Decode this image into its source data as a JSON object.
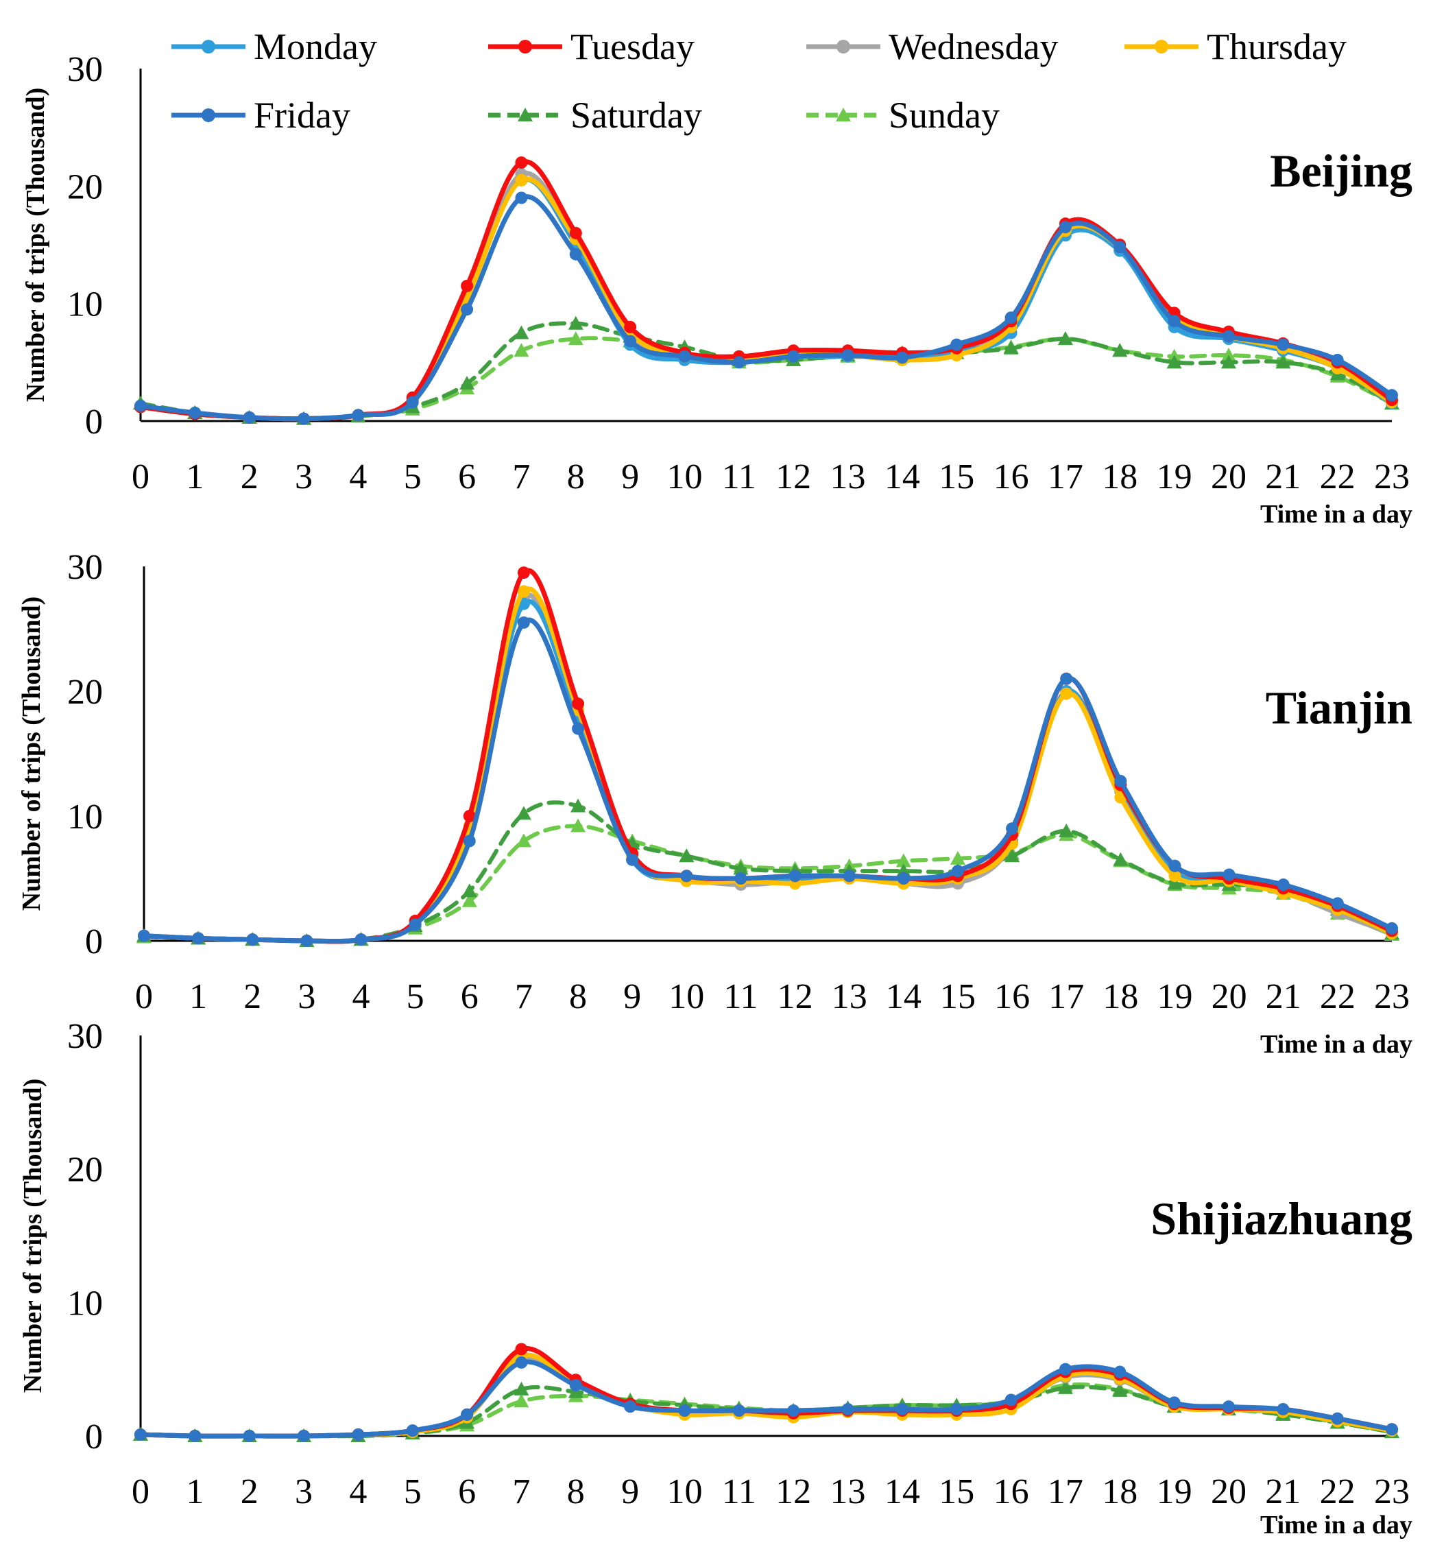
{
  "legend": {
    "placement": "top",
    "items": [
      {
        "label": "Monday",
        "color": "#2E9FDB",
        "dash": false,
        "marker": "circle"
      },
      {
        "label": "Tuesday",
        "color": "#F50F0F",
        "dash": false,
        "marker": "circle"
      },
      {
        "label": "Wednesday",
        "color": "#A6A6A6",
        "dash": false,
        "marker": "circle"
      },
      {
        "label": "Thursday",
        "color": "#FFBF00",
        "dash": false,
        "marker": "circle"
      },
      {
        "label": "Friday",
        "color": "#2E75C6",
        "dash": false,
        "marker": "circle"
      },
      {
        "label": "Saturday",
        "color": "#3F9F3F",
        "dash": true,
        "marker": "triangle"
      },
      {
        "label": "Sunday",
        "color": "#6CC94A",
        "dash": true,
        "marker": "triangle"
      }
    ]
  },
  "chart_data": [
    {
      "type": "line",
      "title": "Beijing",
      "xlabel": "Time in a day",
      "ylabel": "Number of trips (Thousand)",
      "ylim": [
        0,
        30
      ],
      "yticks": [
        0,
        10,
        20,
        30
      ],
      "x": [
        0,
        1,
        2,
        3,
        4,
        5,
        6,
        7,
        8,
        9,
        10,
        11,
        12,
        13,
        14,
        15,
        16,
        17,
        18,
        19,
        20,
        21,
        22,
        23
      ],
      "series": [
        {
          "name": "Monday",
          "values": [
            1.2,
            0.6,
            0.3,
            0.2,
            0.5,
            1.8,
            10.5,
            20.5,
            15.0,
            6.5,
            5.2,
            5.0,
            5.5,
            5.5,
            5.5,
            6.0,
            7.5,
            15.8,
            14.5,
            8.0,
            7.0,
            6.0,
            4.5,
            1.5
          ]
        },
        {
          "name": "Tuesday",
          "values": [
            1.2,
            0.6,
            0.3,
            0.2,
            0.5,
            2.0,
            11.5,
            22.0,
            16.0,
            8.0,
            5.8,
            5.5,
            6.0,
            6.0,
            5.8,
            6.2,
            8.5,
            16.8,
            15.0,
            9.2,
            7.6,
            6.6,
            5.0,
            1.8
          ]
        },
        {
          "name": "Wednesday",
          "values": [
            1.2,
            0.6,
            0.3,
            0.2,
            0.5,
            1.8,
            10.8,
            21.0,
            15.5,
            7.0,
            5.5,
            5.2,
            5.8,
            5.8,
            5.2,
            5.8,
            8.0,
            16.0,
            14.5,
            8.5,
            7.0,
            6.2,
            4.8,
            1.6
          ]
        },
        {
          "name": "Thursday",
          "values": [
            1.2,
            0.6,
            0.3,
            0.2,
            0.5,
            1.8,
            10.5,
            20.5,
            15.5,
            7.5,
            5.5,
            5.2,
            5.6,
            5.6,
            5.2,
            5.6,
            8.0,
            16.2,
            14.8,
            8.8,
            7.2,
            6.2,
            4.5,
            1.6
          ]
        },
        {
          "name": "Friday",
          "values": [
            1.3,
            0.7,
            0.3,
            0.2,
            0.5,
            1.6,
            9.5,
            19.0,
            14.2,
            6.8,
            5.5,
            5.0,
            5.5,
            5.6,
            5.4,
            6.5,
            8.8,
            16.5,
            14.8,
            8.5,
            7.2,
            6.5,
            5.2,
            2.2
          ]
        },
        {
          "name": "Saturday",
          "values": [
            1.5,
            0.7,
            0.3,
            0.2,
            0.4,
            1.2,
            3.2,
            7.5,
            8.3,
            7.2,
            6.3,
            5.2,
            5.2,
            5.6,
            5.8,
            5.8,
            6.2,
            7.0,
            6.0,
            5.0,
            5.0,
            5.0,
            4.0,
            1.5
          ]
        },
        {
          "name": "Sunday",
          "values": [
            1.5,
            0.7,
            0.3,
            0.2,
            0.4,
            1.0,
            2.8,
            6.0,
            7.0,
            6.8,
            5.8,
            5.0,
            5.2,
            5.5,
            5.5,
            5.8,
            6.3,
            7.0,
            6.0,
            5.5,
            5.6,
            5.2,
            3.8,
            1.5
          ]
        }
      ]
    },
    {
      "type": "line",
      "title": "Tianjin",
      "xlabel": "Time in a day",
      "ylabel": "Number of trips (Thousand)",
      "ylim": [
        0,
        30
      ],
      "yticks": [
        0,
        10,
        20,
        30
      ],
      "x": [
        0,
        1,
        2,
        3,
        4,
        5,
        6,
        7,
        8,
        9,
        10,
        11,
        12,
        13,
        14,
        15,
        16,
        17,
        18,
        19,
        20,
        21,
        22,
        23
      ],
      "series": [
        {
          "name": "Monday",
          "values": [
            0.4,
            0.2,
            0.1,
            0.0,
            0.1,
            1.5,
            9.0,
            27.0,
            18.0,
            6.5,
            5.0,
            4.8,
            5.0,
            5.0,
            4.8,
            5.0,
            8.0,
            20.0,
            12.0,
            5.5,
            5.0,
            4.0,
            2.5,
            0.6
          ]
        },
        {
          "name": "Tuesday",
          "values": [
            0.4,
            0.2,
            0.1,
            0.0,
            0.1,
            1.6,
            10.0,
            29.5,
            19.0,
            7.0,
            5.2,
            5.0,
            5.2,
            5.2,
            5.0,
            5.2,
            8.5,
            21.0,
            12.5,
            6.0,
            5.0,
            4.2,
            2.8,
            0.8
          ]
        },
        {
          "name": "Wednesday",
          "values": [
            0.4,
            0.2,
            0.1,
            0.0,
            0.1,
            1.4,
            9.0,
            27.5,
            18.0,
            6.5,
            5.0,
            4.5,
            4.8,
            5.0,
            4.6,
            4.6,
            7.8,
            20.0,
            12.0,
            5.5,
            4.8,
            4.0,
            2.2,
            0.6
          ]
        },
        {
          "name": "Thursday",
          "values": [
            0.4,
            0.2,
            0.1,
            0.0,
            0.1,
            1.5,
            9.2,
            28.0,
            18.5,
            6.8,
            4.8,
            4.8,
            4.6,
            5.0,
            4.6,
            5.0,
            7.8,
            19.8,
            11.5,
            5.2,
            4.8,
            3.8,
            2.5,
            0.6
          ]
        },
        {
          "name": "Friday",
          "values": [
            0.4,
            0.2,
            0.1,
            0.0,
            0.1,
            1.3,
            8.0,
            25.5,
            17.0,
            6.5,
            5.2,
            5.0,
            5.2,
            5.2,
            5.0,
            5.6,
            9.0,
            21.0,
            12.8,
            6.0,
            5.3,
            4.5,
            3.0,
            1.0
          ]
        },
        {
          "name": "Saturday",
          "values": [
            0.4,
            0.2,
            0.1,
            0.0,
            0.1,
            1.2,
            4.0,
            10.2,
            10.8,
            7.8,
            6.8,
            5.8,
            5.6,
            5.6,
            5.6,
            5.6,
            6.8,
            8.8,
            6.5,
            4.6,
            4.5,
            4.2,
            2.5,
            0.6
          ]
        },
        {
          "name": "Sunday",
          "values": [
            0.3,
            0.2,
            0.1,
            0.0,
            0.1,
            1.0,
            3.2,
            8.0,
            9.2,
            8.0,
            6.8,
            6.0,
            5.8,
            6.0,
            6.4,
            6.6,
            7.0,
            8.5,
            6.4,
            4.5,
            4.2,
            3.8,
            2.2,
            0.5
          ]
        }
      ]
    },
    {
      "type": "line",
      "title": "Shijiazhuang",
      "xlabel": "Time in a day",
      "ylabel": "Number of trips (Thousand)",
      "ylim": [
        0,
        30
      ],
      "yticks": [
        0,
        10,
        20,
        30
      ],
      "x": [
        0,
        1,
        2,
        3,
        4,
        5,
        6,
        7,
        8,
        9,
        10,
        11,
        12,
        13,
        14,
        15,
        16,
        17,
        18,
        19,
        20,
        21,
        22,
        23
      ],
      "series": [
        {
          "name": "Monday",
          "values": [
            0.1,
            0.0,
            0.0,
            0.0,
            0.1,
            0.4,
            1.5,
            6.0,
            4.0,
            2.3,
            1.8,
            1.8,
            1.6,
            1.8,
            1.8,
            1.8,
            2.2,
            4.5,
            4.3,
            2.3,
            2.0,
            1.9,
            1.2,
            0.4
          ]
        },
        {
          "name": "Tuesday",
          "values": [
            0.1,
            0.0,
            0.0,
            0.0,
            0.1,
            0.4,
            1.6,
            6.5,
            4.2,
            2.4,
            1.9,
            1.9,
            1.7,
            1.9,
            1.9,
            1.9,
            2.4,
            4.8,
            4.6,
            2.4,
            2.1,
            2.0,
            1.3,
            0.5
          ]
        },
        {
          "name": "Wednesday",
          "values": [
            0.1,
            0.0,
            0.0,
            0.0,
            0.1,
            0.3,
            1.4,
            5.8,
            3.8,
            2.2,
            1.8,
            1.7,
            1.6,
            1.8,
            1.8,
            1.8,
            2.2,
            4.4,
            4.2,
            2.2,
            2.0,
            1.8,
            1.2,
            0.4
          ]
        },
        {
          "name": "Thursday",
          "values": [
            0.1,
            0.0,
            0.0,
            0.0,
            0.1,
            0.3,
            1.4,
            6.0,
            4.0,
            2.3,
            1.6,
            1.7,
            1.4,
            1.8,
            1.6,
            1.6,
            2.0,
            4.5,
            4.3,
            2.2,
            2.0,
            1.8,
            1.1,
            0.4
          ]
        },
        {
          "name": "Friday",
          "values": [
            0.1,
            0.0,
            0.0,
            0.0,
            0.1,
            0.4,
            1.6,
            5.5,
            3.8,
            2.2,
            1.9,
            1.9,
            1.9,
            2.0,
            2.0,
            2.0,
            2.7,
            5.0,
            4.8,
            2.5,
            2.2,
            2.0,
            1.3,
            0.5
          ]
        },
        {
          "name": "Saturday",
          "values": [
            0.1,
            0.0,
            0.0,
            0.0,
            0.0,
            0.2,
            1.0,
            3.5,
            3.3,
            2.6,
            2.3,
            2.0,
            1.9,
            2.1,
            2.3,
            2.3,
            2.5,
            3.6,
            3.4,
            2.2,
            2.0,
            1.6,
            1.0,
            0.3
          ]
        },
        {
          "name": "Sunday",
          "values": [
            0.1,
            0.0,
            0.0,
            0.0,
            0.0,
            0.2,
            0.8,
            2.6,
            3.0,
            2.7,
            2.4,
            2.1,
            1.9,
            2.1,
            2.3,
            2.3,
            2.6,
            3.8,
            3.5,
            2.2,
            2.0,
            1.7,
            1.0,
            0.3
          ]
        }
      ]
    }
  ]
}
